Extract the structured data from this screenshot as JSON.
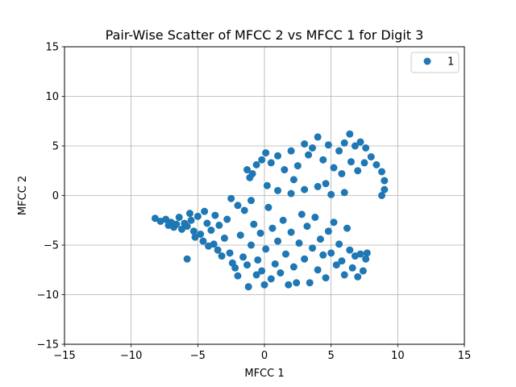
{
  "chart_data": {
    "type": "scatter",
    "title": "Pair-Wise Scatter of MFCC 2 vs MFCC 1 for Digit 3",
    "xlabel": "MFCC 1",
    "ylabel": "MFCC 2",
    "xlim": [
      -15,
      15
    ],
    "ylim": [
      -15,
      15
    ],
    "xticks": [
      -15,
      -10,
      -5,
      0,
      5,
      10,
      15
    ],
    "yticks": [
      -15,
      -10,
      -5,
      0,
      5,
      10,
      15
    ],
    "xtick_labels": [
      "−15",
      "−10",
      "−5",
      "0",
      "5",
      "10",
      "15"
    ],
    "ytick_labels": [
      "−15",
      "−10",
      "−5",
      "0",
      "5",
      "10",
      "15"
    ],
    "grid": true,
    "legend_position": "top-right",
    "series": [
      {
        "name": "1",
        "color": "#1f77b4",
        "points": [
          [
            -8.2,
            -2.3
          ],
          [
            -7.8,
            -2.6
          ],
          [
            -7.4,
            -2.4
          ],
          [
            -7.2,
            -3.0
          ],
          [
            -7.0,
            -2.7
          ],
          [
            -6.8,
            -3.2
          ],
          [
            -6.6,
            -2.9
          ],
          [
            -6.4,
            -2.2
          ],
          [
            -6.2,
            -3.4
          ],
          [
            -6.0,
            -2.8
          ],
          [
            -5.8,
            -3.1
          ],
          [
            -5.6,
            -1.8
          ],
          [
            -5.5,
            -2.5
          ],
          [
            -5.3,
            -3.6
          ],
          [
            -5.2,
            -4.2
          ],
          [
            -5.0,
            -2.1
          ],
          [
            -4.8,
            -3.9
          ],
          [
            -4.6,
            -4.6
          ],
          [
            -4.5,
            -1.6
          ],
          [
            -4.3,
            -2.8
          ],
          [
            -4.2,
            -5.1
          ],
          [
            -4.0,
            -3.5
          ],
          [
            -3.8,
            -4.9
          ],
          [
            -3.7,
            -2.0
          ],
          [
            -3.5,
            -5.5
          ],
          [
            -3.4,
            -3.0
          ],
          [
            -3.2,
            -6.1
          ],
          [
            -3.0,
            -4.3
          ],
          [
            -2.8,
            -2.4
          ],
          [
            -2.6,
            -5.8
          ],
          [
            -2.5,
            -0.3
          ],
          [
            -2.4,
            -6.8
          ],
          [
            -2.2,
            -7.3
          ],
          [
            -2.0,
            -8.1
          ],
          [
            -1.8,
            -4.0
          ],
          [
            -1.6,
            -6.2
          ],
          [
            -1.5,
            -1.5
          ],
          [
            -1.3,
            -7.0
          ],
          [
            -1.2,
            -9.2
          ],
          [
            -1.0,
            -5.0
          ],
          [
            -0.8,
            -2.9
          ],
          [
            -0.6,
            -8.0
          ],
          [
            -0.5,
            -6.5
          ],
          [
            -0.3,
            -3.8
          ],
          [
            -0.2,
            -7.6
          ],
          [
            0.0,
            -9.0
          ],
          [
            0.1,
            -5.4
          ],
          [
            0.3,
            -1.2
          ],
          [
            0.5,
            -8.4
          ],
          [
            0.6,
            -3.3
          ],
          [
            0.8,
            -6.9
          ],
          [
            1.0,
            -4.6
          ],
          [
            1.2,
            -7.8
          ],
          [
            1.4,
            -2.5
          ],
          [
            1.6,
            -5.9
          ],
          [
            1.8,
            -9.0
          ],
          [
            2.0,
            -3.7
          ],
          [
            2.2,
            -7.2
          ],
          [
            2.4,
            -8.8
          ],
          [
            2.6,
            -4.8
          ],
          [
            2.8,
            -1.9
          ],
          [
            3.0,
            -6.4
          ],
          [
            3.2,
            -3.1
          ],
          [
            3.4,
            -8.8
          ],
          [
            3.6,
            -5.3
          ],
          [
            3.8,
            -2.2
          ],
          [
            4.0,
            -7.5
          ],
          [
            4.2,
            -4.4
          ],
          [
            4.4,
            -6.0
          ],
          [
            4.6,
            -8.3
          ],
          [
            4.8,
            -3.6
          ],
          [
            5.0,
            -5.8
          ],
          [
            5.2,
            -2.7
          ],
          [
            5.4,
            -7.0
          ],
          [
            5.6,
            -4.9
          ],
          [
            5.8,
            -6.6
          ],
          [
            6.0,
            -8.0
          ],
          [
            6.2,
            -3.3
          ],
          [
            6.4,
            -5.5
          ],
          [
            6.6,
            -7.3
          ],
          [
            6.8,
            -6.1
          ],
          [
            7.0,
            -8.2
          ],
          [
            7.2,
            -5.9
          ],
          [
            7.4,
            -7.6
          ],
          [
            7.6,
            -6.4
          ],
          [
            7.7,
            -5.8
          ],
          [
            -5.8,
            -6.4
          ],
          [
            -2.0,
            -1.0
          ],
          [
            -1.0,
            -0.5
          ],
          [
            0.2,
            1.0
          ],
          [
            1.0,
            0.5
          ],
          [
            2.0,
            0.2
          ],
          [
            3.0,
            0.6
          ],
          [
            4.0,
            0.9
          ],
          [
            5.0,
            0.1
          ],
          [
            6.0,
            0.3
          ],
          [
            -0.9,
            2.2
          ],
          [
            -0.6,
            3.1
          ],
          [
            -0.2,
            3.6
          ],
          [
            0.1,
            4.3
          ],
          [
            0.5,
            3.3
          ],
          [
            1.0,
            4.0
          ],
          [
            1.5,
            2.6
          ],
          [
            2.0,
            4.5
          ],
          [
            2.5,
            3.0
          ],
          [
            3.0,
            5.2
          ],
          [
            3.3,
            4.1
          ],
          [
            3.6,
            4.8
          ],
          [
            4.0,
            5.9
          ],
          [
            4.4,
            3.6
          ],
          [
            4.8,
            5.1
          ],
          [
            5.2,
            2.8
          ],
          [
            5.6,
            4.5
          ],
          [
            6.0,
            5.3
          ],
          [
            6.4,
            6.2
          ],
          [
            6.8,
            5.0
          ],
          [
            7.2,
            5.4
          ],
          [
            7.6,
            4.8
          ],
          [
            8.0,
            3.9
          ],
          [
            8.4,
            3.1
          ],
          [
            8.8,
            2.4
          ],
          [
            9.0,
            1.5
          ],
          [
            9.0,
            0.6
          ],
          [
            8.8,
            0.0
          ],
          [
            5.8,
            2.2
          ],
          [
            6.5,
            3.4
          ],
          [
            7.0,
            2.5
          ],
          [
            7.5,
            3.3
          ],
          [
            -1.3,
            2.6
          ],
          [
            -1.1,
            1.8
          ],
          [
            2.2,
            1.6
          ],
          [
            4.6,
            1.2
          ]
        ]
      }
    ]
  }
}
